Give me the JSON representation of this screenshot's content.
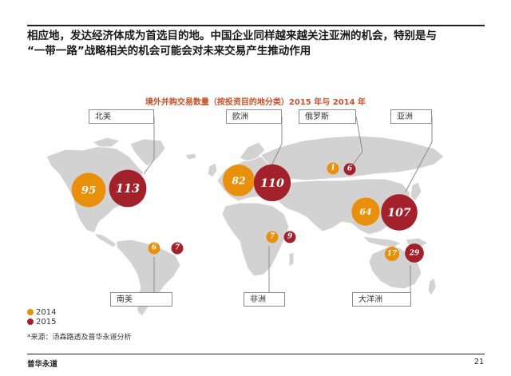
{
  "slide": {
    "heading_line1": "相应地，发达经济体成为首选目的地。中国企业同样越来越关注亚洲的机会，特别是与",
    "heading_line2": "“一带一路”战略相关的机会可能会对未来交易产生推动作用",
    "source": "*来源：汤森路透及普华永道分析",
    "footer_brand": "普华永道",
    "page_number": "21"
  },
  "colors": {
    "2014": "#e8900c",
    "2015": "#a3212b",
    "land": "#d2d2d2",
    "title": "#c7502a"
  },
  "chart_data": {
    "type": "bubble-map",
    "title": "境外并购交易数量（按投资目的地分类）2015 年与 2014 年",
    "series_names": [
      "2014",
      "2015"
    ],
    "regions": [
      {
        "name": "北美",
        "v2014": 95,
        "v2015": 113
      },
      {
        "name": "欧洲",
        "v2014": 82,
        "v2015": 110
      },
      {
        "name": "俄罗斯",
        "v2014": 1,
        "v2015": 6
      },
      {
        "name": "亚洲",
        "v2014": 64,
        "v2015": 107
      },
      {
        "name": "南美",
        "v2014": 6,
        "v2015": 7
      },
      {
        "name": "非洲",
        "v2014": 7,
        "v2015": 9
      },
      {
        "name": "大洋洲",
        "v2014": 17,
        "v2015": 29
      }
    ],
    "legend": [
      "2014",
      "2015"
    ],
    "legend_position": "bottom-left"
  }
}
